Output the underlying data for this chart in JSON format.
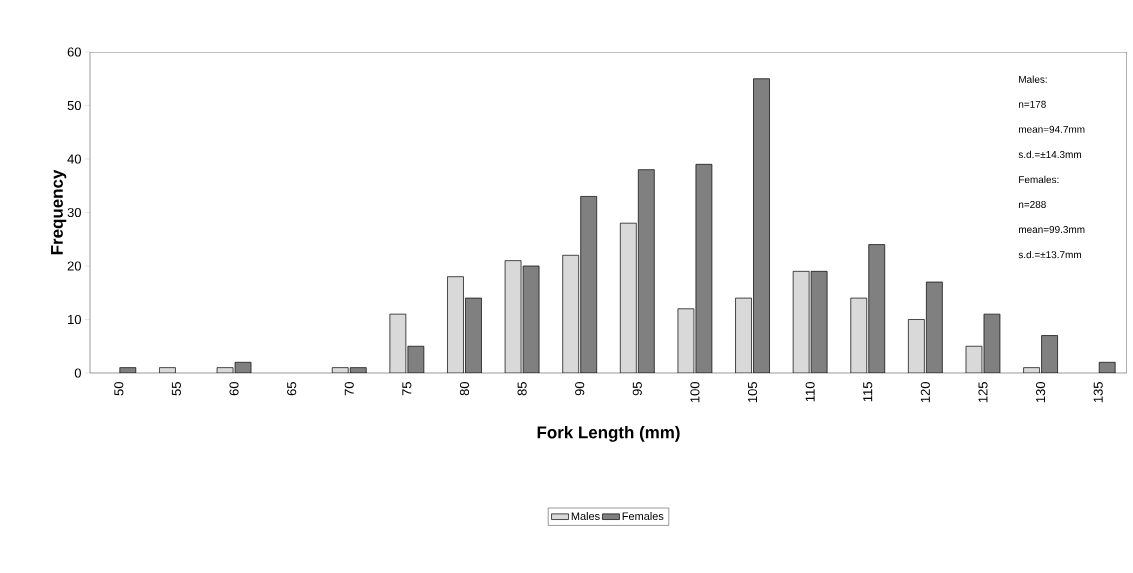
{
  "chart_data": {
    "type": "bar",
    "xlabel": "Fork Length (mm)",
    "ylabel": "Frequency",
    "categories": [
      "50",
      "55",
      "60",
      "65",
      "70",
      "75",
      "80",
      "85",
      "90",
      "95",
      "100",
      "105",
      "110",
      "115",
      "120",
      "125",
      "130",
      "135"
    ],
    "series": [
      {
        "name": "Males",
        "color": "#d9d9d9",
        "values": [
          0,
          1,
          1,
          0,
          1,
          11,
          18,
          21,
          22,
          28,
          12,
          14,
          19,
          14,
          10,
          5,
          1,
          0
        ]
      },
      {
        "name": "Females",
        "color": "#808080",
        "values": [
          1,
          0,
          2,
          0,
          1,
          5,
          14,
          20,
          33,
          38,
          39,
          55,
          19,
          24,
          17,
          11,
          7,
          2
        ]
      }
    ],
    "ylim": [
      0,
      60
    ],
    "yticks": [
      0,
      10,
      20,
      30,
      40,
      50,
      60
    ],
    "grid": false,
    "legend": "bottom",
    "annotations": [
      "Males:",
      "n=178",
      "mean=94.7mm",
      "s.d.=±14.3mm",
      "Females:",
      "n=288",
      "mean=99.3mm",
      "s.d.=±13.7mm"
    ]
  }
}
